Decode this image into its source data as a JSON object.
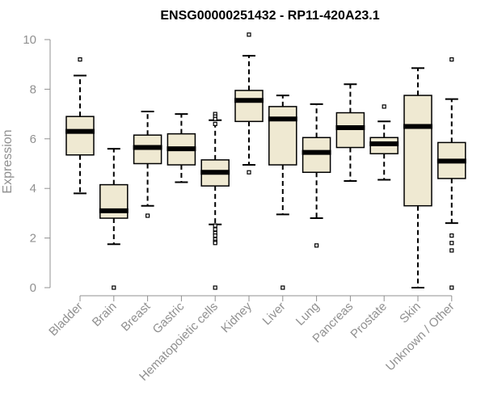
{
  "chart_data": {
    "type": "boxplot",
    "title": "ENSG00000251432 - RP11-420A23.1",
    "xlabel": "",
    "ylabel": "Expression",
    "ylim": [
      0,
      10
    ],
    "yticks": [
      0,
      2,
      4,
      6,
      8,
      10
    ],
    "grid": false,
    "colors": {
      "box_fill": "#efe9d2",
      "stroke": "#000000",
      "axis": "#909090"
    },
    "categories": [
      "Bladder",
      "Brain",
      "Breast",
      "Gastric",
      "Hematopoietic cells",
      "Kidney",
      "Liver",
      "Lung",
      "Pancreas",
      "Prostate",
      "Skin",
      "Unknown / Other"
    ],
    "boxes": [
      {
        "category": "Bladder",
        "whisker_low": 3.8,
        "q1": 5.35,
        "median": 6.3,
        "q3": 6.9,
        "whisker_high": 8.55,
        "outliers": [
          9.2
        ]
      },
      {
        "category": "Brain",
        "whisker_low": 1.75,
        "q1": 2.8,
        "median": 3.1,
        "q3": 4.15,
        "whisker_high": 5.6,
        "outliers": [
          0.0
        ]
      },
      {
        "category": "Breast",
        "whisker_low": 3.3,
        "q1": 5.0,
        "median": 5.65,
        "q3": 6.15,
        "whisker_high": 7.1,
        "outliers": [
          2.9
        ]
      },
      {
        "category": "Gastric",
        "whisker_low": 4.25,
        "q1": 4.95,
        "median": 5.6,
        "q3": 6.2,
        "whisker_high": 7.0,
        "outliers": []
      },
      {
        "category": "Hematopoietic cells",
        "whisker_low": 2.55,
        "q1": 4.1,
        "median": 4.65,
        "q3": 5.15,
        "whisker_high": 6.75,
        "outliers": [
          7.0,
          6.9,
          6.8,
          6.6,
          2.5,
          2.35,
          2.2,
          2.1,
          1.95,
          1.85,
          1.8,
          0.0
        ]
      },
      {
        "category": "Kidney",
        "whisker_low": 4.95,
        "q1": 6.7,
        "median": 7.55,
        "q3": 7.95,
        "whisker_high": 9.35,
        "outliers": [
          10.2,
          4.65
        ]
      },
      {
        "category": "Liver",
        "whisker_low": 2.95,
        "q1": 4.95,
        "median": 6.8,
        "q3": 7.3,
        "whisker_high": 7.75,
        "outliers": [
          0.0
        ]
      },
      {
        "category": "Lung",
        "whisker_low": 2.8,
        "q1": 4.65,
        "median": 5.45,
        "q3": 6.05,
        "whisker_high": 7.4,
        "outliers": [
          1.7
        ]
      },
      {
        "category": "Pancreas",
        "whisker_low": 4.3,
        "q1": 5.65,
        "median": 6.45,
        "q3": 7.05,
        "whisker_high": 8.2,
        "outliers": []
      },
      {
        "category": "Prostate",
        "whisker_low": 4.35,
        "q1": 5.4,
        "median": 5.8,
        "q3": 6.05,
        "whisker_high": 6.7,
        "outliers": [
          7.3
        ]
      },
      {
        "category": "Skin",
        "whisker_low": 0.0,
        "q1": 3.3,
        "median": 6.5,
        "q3": 7.75,
        "whisker_high": 8.85,
        "outliers": []
      },
      {
        "category": "Unknown / Other",
        "whisker_low": 2.6,
        "q1": 4.4,
        "median": 5.1,
        "q3": 5.85,
        "whisker_high": 7.6,
        "outliers": [
          9.2,
          2.1,
          1.8,
          1.5,
          0.0
        ]
      }
    ]
  }
}
